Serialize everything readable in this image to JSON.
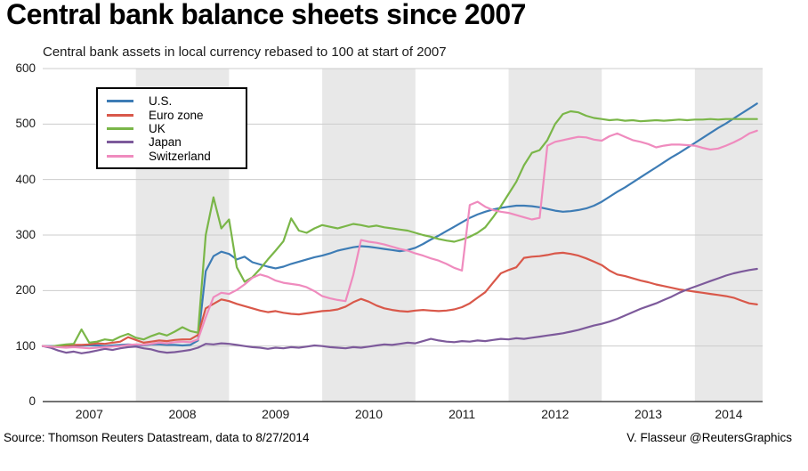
{
  "source_note": "Source: Thomson Reuters Datastream, data to 8/27/2014",
  "credit": "V. Flasseur @ReutersGraphics",
  "chart_data": {
    "type": "line",
    "title": "Central bank balance sheets since 2007",
    "subtitle": "Central bank assets in local currency rebased to 100 at start of 2007",
    "xlim": [
      2007,
      2014.727
    ],
    "ylim": [
      0,
      600
    ],
    "y_ticks": [
      0,
      100,
      200,
      300,
      400,
      500,
      600
    ],
    "x_ticks": [
      2007,
      2008,
      2009,
      2010,
      2011,
      2012,
      2013,
      2014
    ],
    "shaded_years": [
      2008,
      2010,
      2012,
      2014
    ],
    "grid": "horizontal",
    "legend_position": "top-left",
    "colors": {
      "band": "#e8e8e8",
      "grid": "#cccccc",
      "axis": "#444444",
      "text": "#1a1a1a"
    },
    "x_start": 2007.0,
    "x_step": 0.0833333,
    "series": [
      {
        "name": "U.S.",
        "color": "#3d7cb5",
        "values": [
          100,
          100,
          100,
          101,
          100,
          101,
          101,
          101,
          100,
          101,
          102,
          103,
          102,
          101,
          103,
          103,
          102,
          102,
          101,
          102,
          110,
          235,
          262,
          270,
          266,
          256,
          261,
          251,
          247,
          243,
          240,
          243,
          248,
          252,
          256,
          260,
          263,
          267,
          272,
          275,
          278,
          280,
          279,
          277,
          275,
          273,
          271,
          273,
          277,
          284,
          292,
          299,
          307,
          315,
          323,
          331,
          337,
          342,
          346,
          349,
          351,
          353,
          353,
          352,
          350,
          347,
          344,
          342,
          343,
          345,
          348,
          353,
          360,
          369,
          378,
          386,
          395,
          404,
          413,
          422,
          431,
          440,
          448,
          457,
          466,
          475,
          484,
          493,
          501,
          510,
          519,
          528,
          537
        ]
      },
      {
        "name": "Euro zone",
        "color": "#d9584a",
        "values": [
          100,
          99,
          100,
          101,
          102,
          102,
          103,
          105,
          104,
          106,
          108,
          116,
          111,
          106,
          108,
          110,
          109,
          111,
          112,
          112,
          120,
          168,
          176,
          184,
          181,
          176,
          172,
          168,
          164,
          161,
          163,
          160,
          158,
          157,
          159,
          161,
          163,
          164,
          166,
          171,
          179,
          185,
          180,
          173,
          168,
          165,
          163,
          162,
          164,
          165,
          164,
          163,
          164,
          166,
          170,
          177,
          187,
          197,
          214,
          231,
          237,
          242,
          259,
          261,
          262,
          264,
          267,
          268,
          266,
          263,
          258,
          252,
          246,
          236,
          229,
          226,
          222,
          218,
          215,
          211,
          208,
          205,
          202,
          200,
          198,
          196,
          194,
          192,
          190,
          187,
          182,
          177,
          175
        ]
      },
      {
        "name": "UK",
        "color": "#7ab648",
        "values": [
          100,
          99,
          101,
          103,
          104,
          130,
          106,
          108,
          112,
          110,
          117,
          122,
          115,
          112,
          118,
          123,
          119,
          126,
          134,
          127,
          124,
          300,
          368,
          312,
          328,
          242,
          216,
          224,
          239,
          256,
          272,
          289,
          330,
          308,
          304,
          312,
          318,
          315,
          312,
          316,
          320,
          318,
          315,
          317,
          314,
          312,
          310,
          308,
          304,
          300,
          297,
          293,
          290,
          288,
          292,
          297,
          304,
          314,
          332,
          352,
          374,
          396,
          426,
          448,
          453,
          471,
          500,
          518,
          523,
          521,
          515,
          511,
          509,
          507,
          508,
          506,
          507,
          505,
          506,
          507,
          506,
          507,
          508,
          507,
          508,
          508,
          509,
          508,
          509,
          509,
          509,
          509,
          509
        ]
      },
      {
        "name": "Japan",
        "color": "#7d5a9b",
        "values": [
          100,
          97,
          92,
          88,
          90,
          87,
          89,
          92,
          95,
          93,
          96,
          98,
          99,
          96,
          94,
          90,
          88,
          89,
          91,
          93,
          97,
          104,
          103,
          105,
          104,
          102,
          100,
          98,
          97,
          95,
          97,
          96,
          98,
          97,
          99,
          101,
          100,
          98,
          97,
          96,
          98,
          97,
          99,
          101,
          103,
          102,
          104,
          106,
          105,
          109,
          113,
          110,
          108,
          107,
          109,
          108,
          110,
          109,
          111,
          113,
          112,
          114,
          113,
          115,
          117,
          119,
          121,
          123,
          126,
          129,
          133,
          137,
          140,
          144,
          149,
          155,
          161,
          167,
          172,
          177,
          183,
          189,
          196,
          202,
          207,
          212,
          217,
          222,
          227,
          231,
          234,
          237,
          239
        ]
      },
      {
        "name": "Switzerland",
        "color": "#ef8bbe",
        "values": [
          100,
          99,
          98,
          97,
          98,
          97,
          96,
          97,
          98,
          99,
          100,
          102,
          103,
          102,
          104,
          106,
          105,
          107,
          108,
          107,
          112,
          152,
          188,
          196,
          194,
          201,
          211,
          223,
          229,
          225,
          218,
          214,
          212,
          210,
          206,
          199,
          190,
          186,
          183,
          181,
          228,
          291,
          288,
          286,
          283,
          279,
          275,
          272,
          267,
          263,
          258,
          254,
          248,
          241,
          236,
          354,
          360,
          351,
          345,
          342,
          340,
          336,
          332,
          328,
          331,
          461,
          468,
          471,
          474,
          477,
          476,
          472,
          470,
          478,
          483,
          477,
          471,
          468,
          464,
          458,
          461,
          463,
          463,
          462,
          461,
          457,
          454,
          456,
          461,
          467,
          474,
          483,
          488
        ]
      }
    ]
  }
}
